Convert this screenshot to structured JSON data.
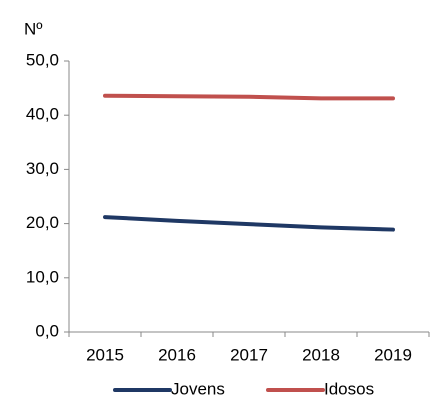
{
  "chart_data": {
    "type": "line",
    "y_label": "Nº",
    "categories": [
      "2015",
      "2016",
      "2017",
      "2018",
      "2019"
    ],
    "series": [
      {
        "name": "Jovens",
        "color": "#1f3864",
        "values": [
          21.2,
          20.5,
          19.9,
          19.3,
          18.9
        ]
      },
      {
        "name": "Idosos",
        "color": "#c0504d",
        "values": [
          43.6,
          43.5,
          43.4,
          43.1,
          43.1
        ]
      }
    ],
    "ylim": [
      0,
      50
    ],
    "yticks": [
      {
        "value": 0,
        "label": "0,0"
      },
      {
        "value": 10,
        "label": "10,0"
      },
      {
        "value": 20,
        "label": "20,0"
      },
      {
        "value": 30,
        "label": "30,0"
      },
      {
        "value": 40,
        "label": "40,0"
      },
      {
        "value": 50,
        "label": "50,0"
      }
    ],
    "legend": "bottom"
  }
}
